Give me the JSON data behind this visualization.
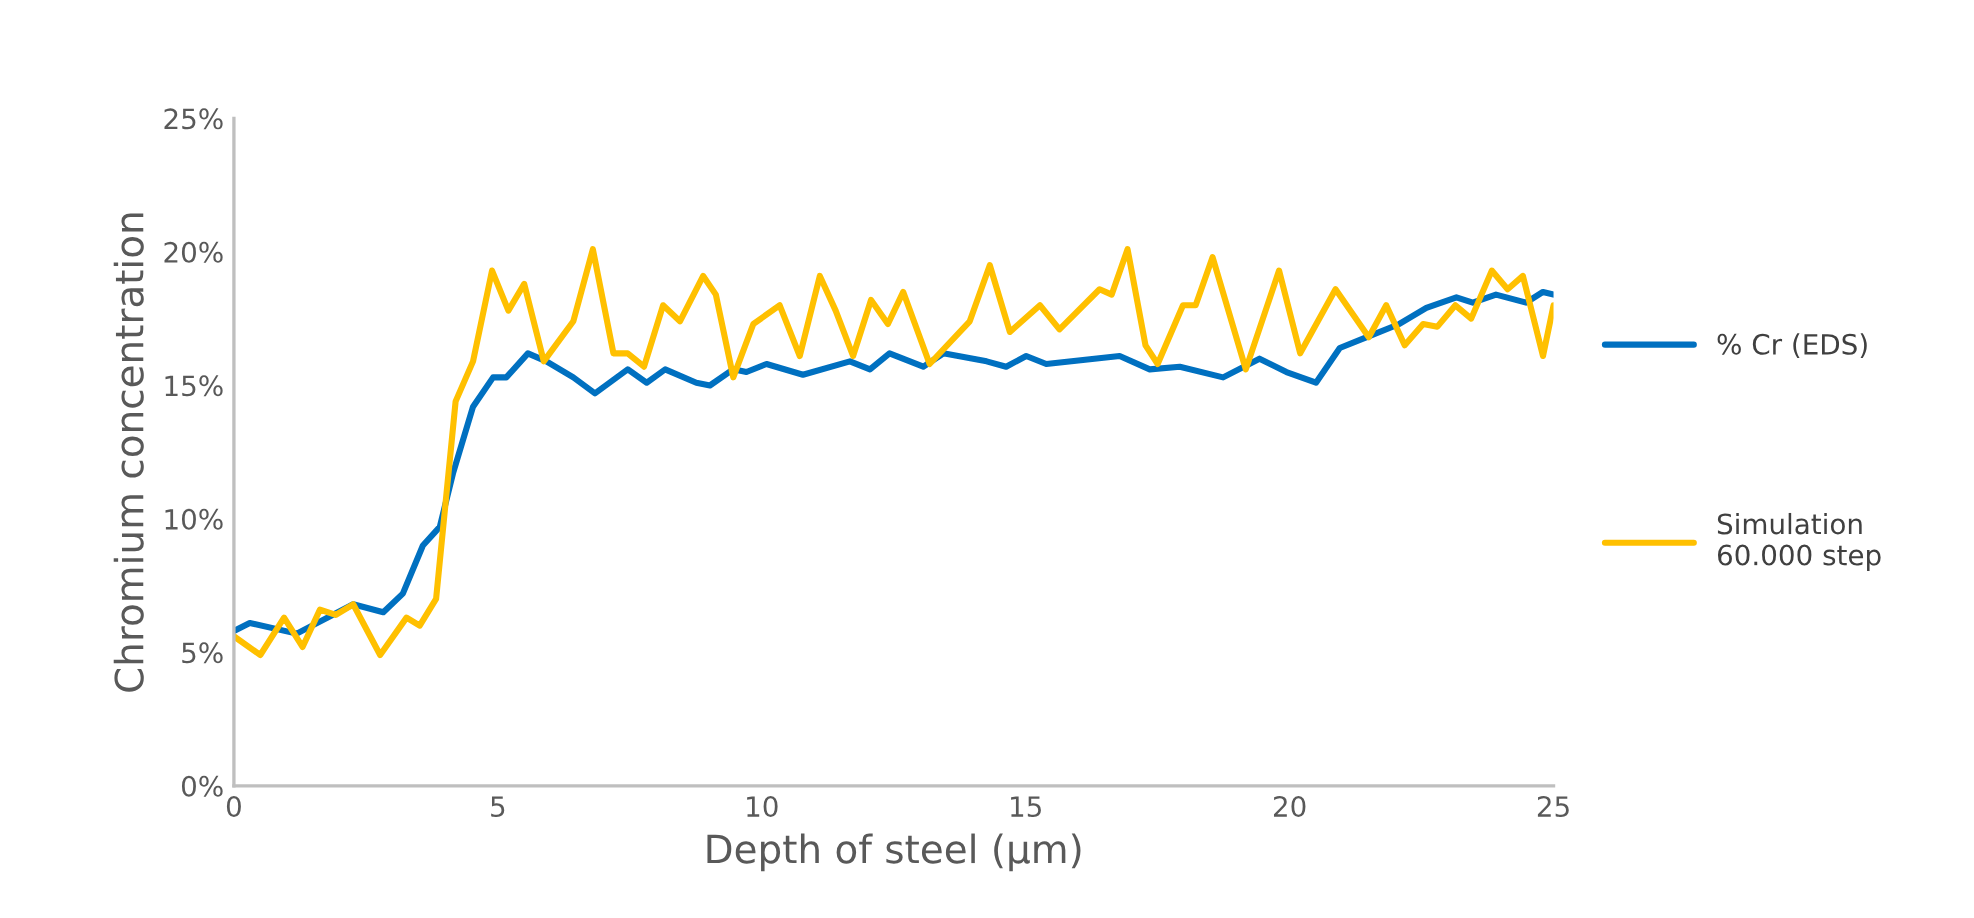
{
  "chart_data": {
    "type": "line",
    "xlabel": "Depth of steel (µm)",
    "ylabel": "Chromium concentration",
    "xlim": [
      0,
      25
    ],
    "xticks": [
      0,
      5,
      10,
      15,
      20,
      25
    ],
    "ylim": [
      0,
      25
    ],
    "yticks": [
      {
        "value": 0,
        "label": "0%"
      },
      {
        "value": 5,
        "label": "5%"
      },
      {
        "value": 10,
        "label": "10%"
      },
      {
        "value": 15,
        "label": "15%"
      },
      {
        "value": 20,
        "label": "20%"
      },
      {
        "value": 25,
        "label": "25%"
      }
    ],
    "grid": false,
    "legend": "right",
    "marker": "none",
    "line_style": "solid",
    "series": [
      {
        "name": "% Cr (EDS)",
        "color": "#0070c0",
        "x": [
          0,
          0.3,
          1.19,
          2.26,
          2.83,
          3.2,
          3.58,
          3.9,
          4.15,
          4.53,
          4.91,
          5.16,
          5.57,
          5.92,
          6.43,
          6.84,
          7.46,
          7.82,
          8.17,
          8.76,
          9.02,
          9.46,
          9.71,
          10.09,
          10.78,
          11.67,
          12.05,
          12.42,
          13.06,
          13.44,
          14.26,
          14.63,
          15.01,
          15.39,
          16.78,
          17.35,
          17.92,
          18.74,
          19.43,
          19.94,
          20.5,
          20.95,
          21.45,
          22.08,
          22.59,
          23.16,
          23.47,
          23.91,
          24.48,
          24.8,
          25
        ],
        "values": [
          5.8,
          6.1,
          5.7,
          6.8,
          6.5,
          7.2,
          9.0,
          9.7,
          11.7,
          14.2,
          15.3,
          15.3,
          16.2,
          15.9,
          15.3,
          14.7,
          15.6,
          15.1,
          15.6,
          15.1,
          15.0,
          15.6,
          15.5,
          15.8,
          15.4,
          15.9,
          15.6,
          16.2,
          15.7,
          16.2,
          15.9,
          15.7,
          16.1,
          15.8,
          16.1,
          15.6,
          15.7,
          15.3,
          16.0,
          15.5,
          15.1,
          16.4,
          16.8,
          17.3,
          17.9,
          18.3,
          18.1,
          18.4,
          18.1,
          18.5,
          18.4
        ]
      },
      {
        "name": "Simulation\n60.000 step",
        "color": "#ffc000",
        "x": [
          0,
          0.5,
          0.95,
          1.3,
          1.63,
          1.93,
          2.26,
          2.77,
          3.27,
          3.52,
          3.83,
          4.2,
          4.53,
          4.89,
          5.2,
          5.5,
          5.87,
          6.43,
          6.8,
          7.19,
          7.46,
          7.77,
          8.13,
          8.45,
          8.89,
          9.13,
          9.46,
          9.84,
          10.34,
          10.72,
          11.1,
          11.4,
          11.73,
          12.07,
          12.39,
          12.68,
          13.18,
          13.94,
          14.32,
          14.7,
          15.27,
          15.64,
          16.4,
          16.63,
          16.93,
          17.27,
          17.5,
          17.98,
          18.22,
          18.54,
          19.17,
          19.8,
          20.2,
          20.87,
          21.5,
          21.83,
          22.18,
          22.53,
          22.8,
          23.14,
          23.44,
          23.83,
          24.13,
          24.42,
          24.8,
          25
        ],
        "values": [
          5.6,
          4.9,
          6.3,
          5.2,
          6.6,
          6.4,
          6.8,
          4.9,
          6.3,
          6.0,
          7.0,
          14.4,
          15.9,
          19.3,
          17.8,
          18.8,
          15.9,
          17.4,
          20.1,
          16.2,
          16.2,
          15.7,
          18.0,
          17.4,
          19.1,
          18.4,
          15.3,
          17.3,
          18.0,
          16.1,
          19.1,
          17.8,
          16.1,
          18.2,
          17.3,
          18.5,
          15.8,
          17.4,
          19.5,
          17.0,
          18.0,
          17.1,
          18.6,
          18.4,
          20.1,
          16.5,
          15.8,
          18.0,
          18.0,
          19.8,
          15.6,
          19.3,
          16.2,
          18.6,
          16.8,
          18.0,
          16.5,
          17.3,
          17.2,
          18.0,
          17.5,
          19.3,
          18.6,
          19.1,
          16.1,
          18.0
        ]
      }
    ]
  }
}
